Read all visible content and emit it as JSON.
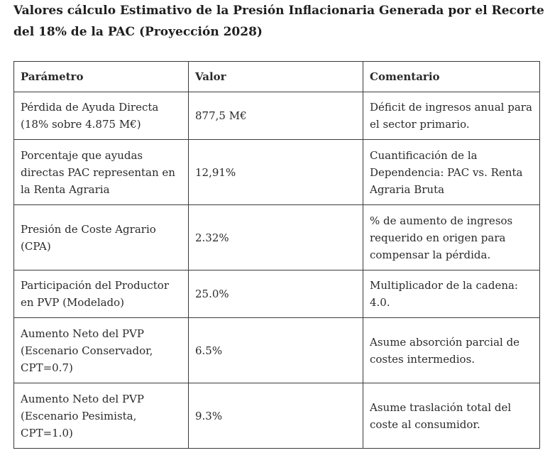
{
  "title": "Valores cálculo Estimativo de la Presión Inflacionaria Generada por el Recorte del 18% de la PAC (Proyección 2028)",
  "table": {
    "headers": [
      "Parámetro",
      "Valor",
      "Comentario"
    ],
    "rows": [
      {
        "parametro": "Pérdida de Ayuda Directa (18% sobre 4.875 M€)",
        "valor": "877,5 M€",
        "comentario": "Déficit de ingresos anual para el sector primario.",
        "bold": false
      },
      {
        "parametro": "Porcentaje que ayudas directas PAC representan en la Renta Agraria",
        "valor": "12,91%",
        "comentario": " Cuantificación de la Dependencia: PAC vs. Renta Agraria Bruta",
        "bold": false
      },
      {
        "parametro": "Presión de Coste Agrario (CPA)",
        "valor": "2.32%",
        "comentario": "% de aumento de ingresos requerido en origen para compensar la pérdida.",
        "bold": false
      },
      {
        "parametro": "Participación del Productor en PVP (Modelado)",
        "valor": "25.0%",
        "comentario": "Multiplicador de la cadena: 4.0.",
        "bold": false
      },
      {
        "parametro": "Aumento Neto del PVP (Escenario Conservador, CPT=0.7)",
        "valor": "6.5%",
        "comentario": "Asume absorción parcial de costes intermedios.",
        "bold": true
      },
      {
        "parametro": "Aumento Neto del PVP (Escenario Pesimista, CPT=1.0)",
        "valor": "9.3%",
        "comentario": "Asume traslación total del coste al consumidor.",
        "bold": true
      }
    ]
  }
}
